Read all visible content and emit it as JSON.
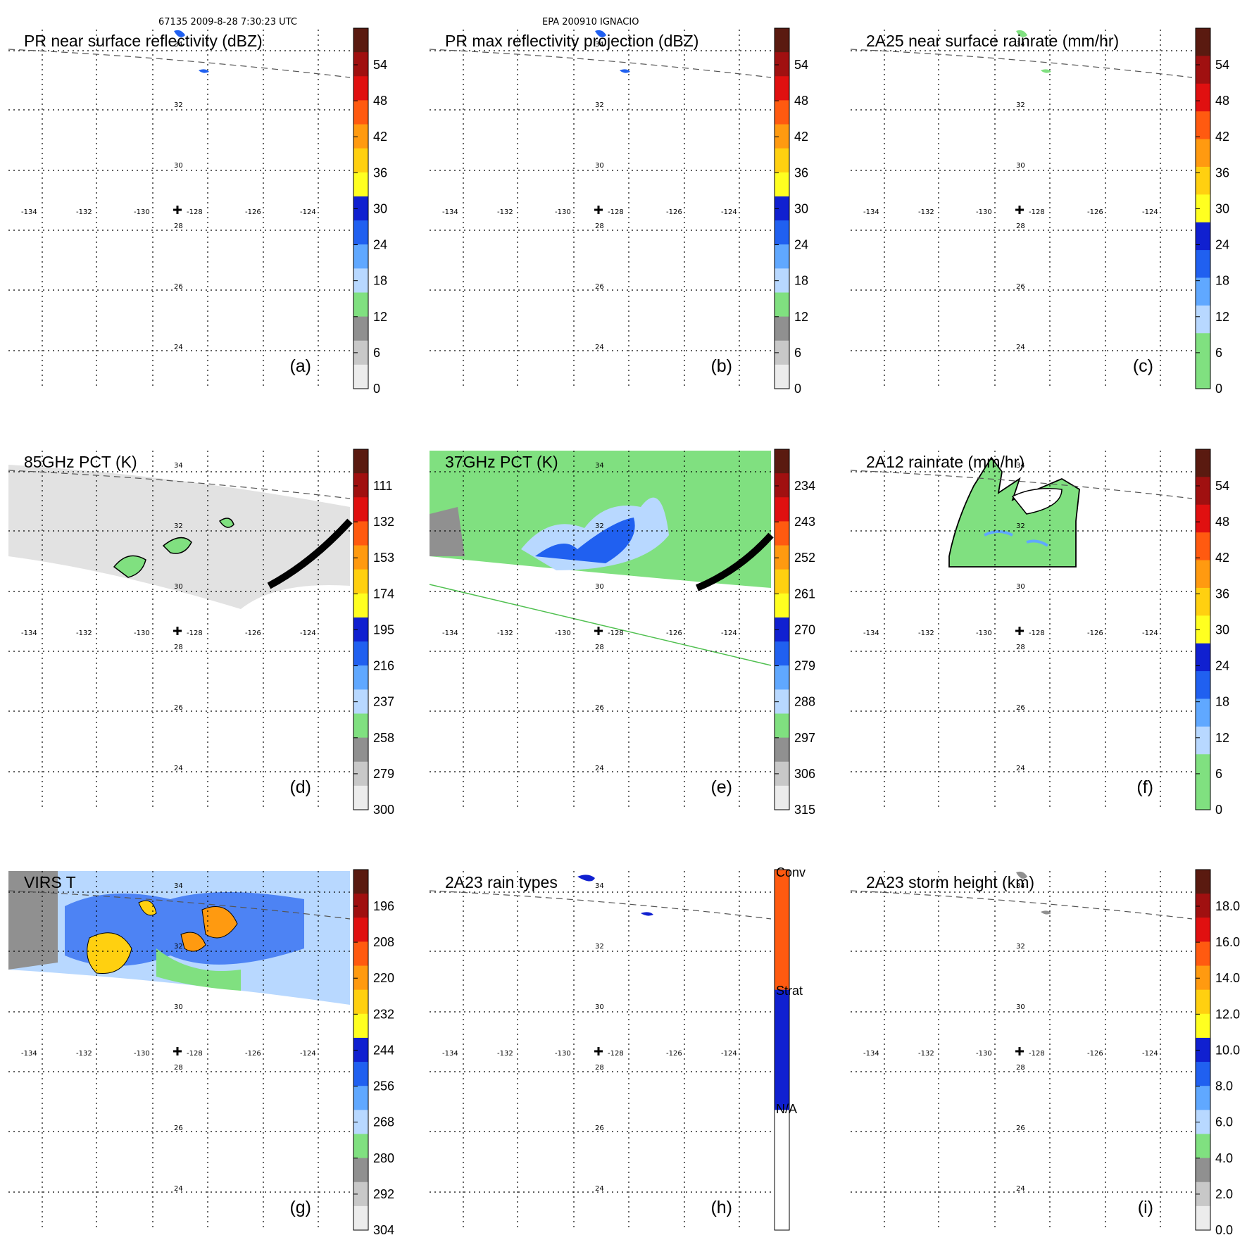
{
  "header": {
    "orbit_time": "67135 2009-8-28 7:30:23 UTC",
    "storm": "EPA 200910 IGNACIO"
  },
  "grid": {
    "lon_labels": [
      "-134",
      "-132",
      "-130",
      "-128",
      "-126",
      "-124"
    ],
    "lat_labels": [
      "34",
      "32",
      "30",
      "28",
      "26",
      "24"
    ]
  },
  "panels": [
    {
      "id": "a",
      "title": "PR near surface reflectivity (dBZ)",
      "label": "(a)",
      "colorbar": {
        "ticks": [
          "54",
          "48",
          "42",
          "36",
          "30",
          "24",
          "18",
          "12",
          "6",
          "0"
        ],
        "colors": [
          "#5a1a10",
          "#a01010",
          "#e01010",
          "#ff5a10",
          "#ff9a10",
          "#ffd010",
          "#ffff20",
          "#1020d0",
          "#2060f0",
          "#60a8ff",
          "#b8d8ff",
          "#80e080",
          "#909090",
          "#c8c8c8",
          "#ececec"
        ]
      }
    },
    {
      "id": "b",
      "title": "PR max reflectivity projection (dBZ)",
      "label": "(b)",
      "colorbar": {
        "ticks": [
          "54",
          "48",
          "42",
          "36",
          "30",
          "24",
          "18",
          "12",
          "6",
          "0"
        ],
        "colors": [
          "#5a1a10",
          "#a01010",
          "#e01010",
          "#ff5a10",
          "#ff9a10",
          "#ffd010",
          "#ffff20",
          "#1020d0",
          "#2060f0",
          "#60a8ff",
          "#b8d8ff",
          "#80e080",
          "#909090",
          "#c8c8c8",
          "#ececec"
        ]
      }
    },
    {
      "id": "c",
      "title": "2A25 near surface rainrate (mm/hr)",
      "label": "(c)",
      "colorbar": {
        "ticks": [
          "54",
          "48",
          "42",
          "36",
          "30",
          "24",
          "18",
          "12",
          "6",
          "0"
        ],
        "colors": [
          "#5a1a10",
          "#a01010",
          "#e01010",
          "#ff5a10",
          "#ff9a10",
          "#ffd010",
          "#ffff20",
          "#1020d0",
          "#2060f0",
          "#60a8ff",
          "#b8d8ff",
          "#80e080",
          "#80e080"
        ]
      }
    },
    {
      "id": "d",
      "title": "85GHz PCT (K)",
      "label": "(d)",
      "colorbar": {
        "ticks": [
          "111",
          "132",
          "153",
          "174",
          "195",
          "216",
          "237",
          "258",
          "279",
          "300"
        ],
        "colors": [
          "#5a1a10",
          "#a01010",
          "#e01010",
          "#ff5a10",
          "#ff9a10",
          "#ffd010",
          "#ffff20",
          "#1020d0",
          "#2060f0",
          "#60a8ff",
          "#b8d8ff",
          "#80e080",
          "#909090",
          "#c8c8c8",
          "#ececec"
        ]
      }
    },
    {
      "id": "e",
      "title": "37GHz PCT (K)",
      "label": "(e)",
      "colorbar": {
        "ticks": [
          "234",
          "243",
          "252",
          "261",
          "270",
          "279",
          "288",
          "297",
          "306",
          "315"
        ],
        "colors": [
          "#5a1a10",
          "#a01010",
          "#e01010",
          "#ff5a10",
          "#ff9a10",
          "#ffd010",
          "#ffff20",
          "#1020d0",
          "#2060f0",
          "#60a8ff",
          "#b8d8ff",
          "#80e080",
          "#909090",
          "#c8c8c8",
          "#ececec"
        ]
      }
    },
    {
      "id": "f",
      "title": "2A12 rainrate (mm/hr)",
      "label": "(f)",
      "colorbar": {
        "ticks": [
          "54",
          "48",
          "42",
          "36",
          "30",
          "24",
          "18",
          "12",
          "6",
          "0"
        ],
        "colors": [
          "#5a1a10",
          "#a01010",
          "#e01010",
          "#ff5a10",
          "#ff9a10",
          "#ffd010",
          "#ffff20",
          "#1020d0",
          "#2060f0",
          "#60a8ff",
          "#b8d8ff",
          "#80e080",
          "#80e080"
        ]
      }
    },
    {
      "id": "g",
      "title": "VIRS T",
      "label": "(g)",
      "colorbar": {
        "ticks": [
          "196",
          "208",
          "220",
          "232",
          "244",
          "256",
          "268",
          "280",
          "292",
          "304"
        ],
        "colors": [
          "#5a1a10",
          "#a01010",
          "#e01010",
          "#ff5a10",
          "#ff9a10",
          "#ffd010",
          "#ffff20",
          "#1020d0",
          "#2060f0",
          "#60a8ff",
          "#b8d8ff",
          "#80e080",
          "#909090",
          "#c8c8c8",
          "#ececec"
        ]
      }
    },
    {
      "id": "h",
      "title": "2A23 rain types",
      "label": "(h)",
      "colorbar": {
        "ticks": [
          "Conv",
          "Strat",
          "N/A"
        ],
        "colors": [
          "#ff5a10",
          "#1020d0",
          "#ffffff"
        ]
      }
    },
    {
      "id": "i",
      "title": "2A23 storm height (km)",
      "label": "(i)",
      "colorbar": {
        "ticks": [
          "18.0",
          "16.0",
          "14.0",
          "12.0",
          "10.0",
          "8.0",
          "6.0",
          "4.0",
          "2.0",
          "0.0"
        ],
        "colors": [
          "#5a1a10",
          "#a01010",
          "#e01010",
          "#ff5a10",
          "#ff9a10",
          "#ffd010",
          "#ffff20",
          "#1020d0",
          "#2060f0",
          "#60a8ff",
          "#b8d8ff",
          "#80e080",
          "#909090",
          "#c8c8c8",
          "#ececec"
        ]
      }
    }
  ]
}
